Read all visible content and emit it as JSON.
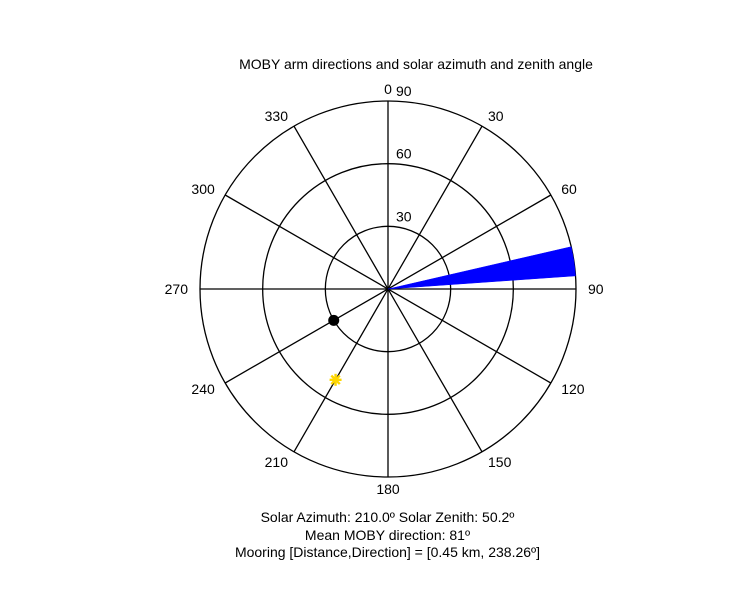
{
  "chart_data": {
    "type": "polar",
    "title": "MOBY arm directions and solar azimuth and zenith angle",
    "angle_ticks": [
      "0",
      "30",
      "60",
      "90",
      "120",
      "150",
      "180",
      "210",
      "240",
      "270",
      "300",
      "330"
    ],
    "radial_ticks": [
      "30",
      "60",
      "90"
    ],
    "radial_max": 90,
    "angle_zero": "top",
    "angle_direction": "clockwise",
    "wedge": {
      "theta_start": 77,
      "theta_end": 86,
      "r_max": 90,
      "color": "#0000ff"
    },
    "points": [
      {
        "theta": 240,
        "r": 30,
        "color": "#000000",
        "marker": "filled-circle"
      },
      {
        "theta": 210,
        "r": 50.2,
        "color": "#ffd700",
        "marker": "asterisk"
      }
    ],
    "grid": true
  },
  "captions": {
    "line1": "Solar Azimuth: 210.0º   Solar Zenith: 50.2º",
    "line2": "Mean MOBY direction: 81º",
    "line3": "Mooring [Distance,Direction] = [0.45 km, 238.26º]"
  }
}
